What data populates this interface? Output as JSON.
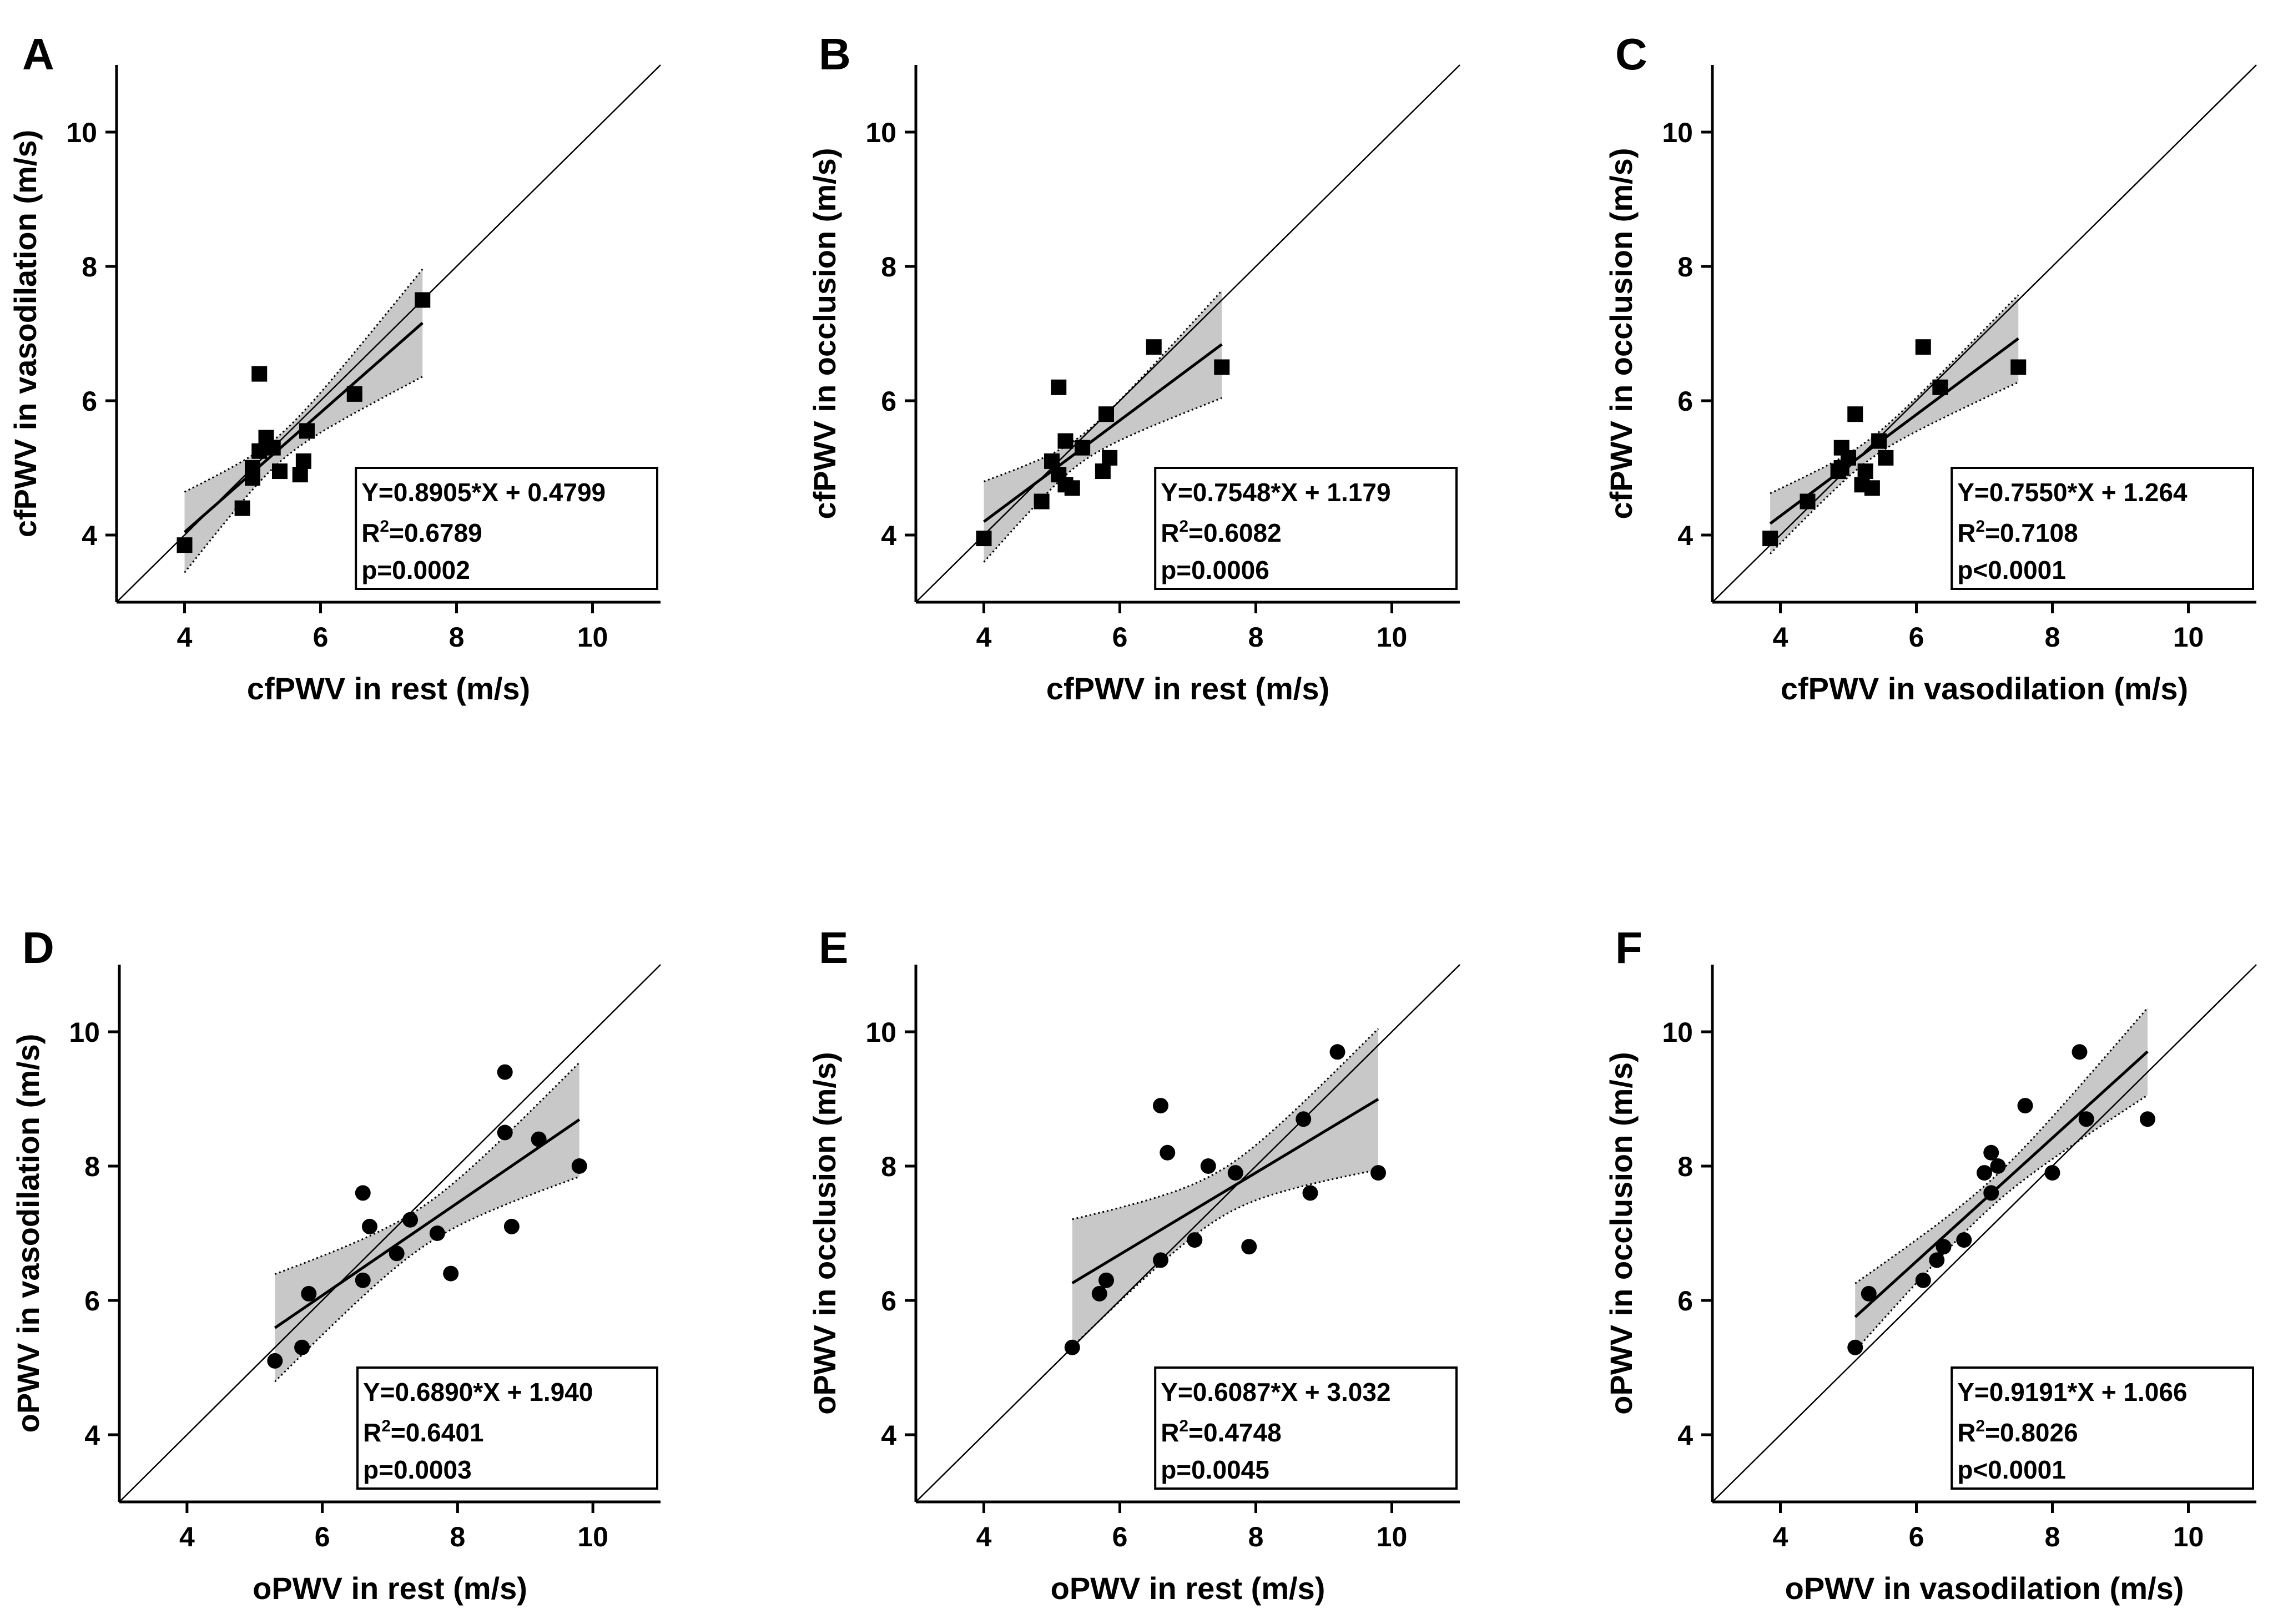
{
  "chart_data": [
    {
      "panel": "A",
      "type": "scatter",
      "marker": "square",
      "xlabel": "cfPWV in rest (m/s)",
      "ylabel": "cfPWV in vasodilation (m/s)",
      "xlim": [
        3,
        11
      ],
      "ylim": [
        3,
        11
      ],
      "xticks": [
        4,
        6,
        8,
        10
      ],
      "yticks": [
        4,
        6,
        8,
        10
      ],
      "points": [
        [
          4.0,
          3.85
        ],
        [
          4.85,
          4.4
        ],
        [
          5.0,
          4.85
        ],
        [
          5.0,
          5.0
        ],
        [
          5.1,
          5.25
        ],
        [
          5.1,
          6.4
        ],
        [
          5.2,
          5.45
        ],
        [
          5.3,
          5.3
        ],
        [
          5.4,
          4.95
        ],
        [
          5.7,
          4.9
        ],
        [
          5.75,
          5.1
        ],
        [
          5.8,
          5.55
        ],
        [
          6.5,
          6.1
        ],
        [
          7.5,
          7.5
        ]
      ],
      "fit": {
        "slope": 0.8905,
        "intercept": 0.4799,
        "x_range": [
          4.0,
          7.5
        ],
        "band_halfwidth_at_ends": [
          0.6,
          0.8
        ],
        "band_halfwidth_mid": 0.2,
        "x_mid": 5.4
      },
      "stats": {
        "equation": "Y=0.8905*X + 0.4799",
        "r2_prefix": "R",
        "r2_sup": "2",
        "r2_value": "=0.6789",
        "p": "p=0.0002"
      }
    },
    {
      "panel": "B",
      "type": "scatter",
      "marker": "square",
      "xlabel": "cfPWV in rest (m/s)",
      "ylabel": "cfPWV in occlusion (m/s)",
      "xlim": [
        3,
        11
      ],
      "ylim": [
        3,
        11
      ],
      "xticks": [
        4,
        6,
        8,
        10
      ],
      "yticks": [
        4,
        6,
        8,
        10
      ],
      "points": [
        [
          4.0,
          3.95
        ],
        [
          4.85,
          4.5
        ],
        [
          5.0,
          5.1
        ],
        [
          5.1,
          4.9
        ],
        [
          5.1,
          6.2
        ],
        [
          5.2,
          4.75
        ],
        [
          5.2,
          5.4
        ],
        [
          5.3,
          4.7
        ],
        [
          5.45,
          5.3
        ],
        [
          5.75,
          4.95
        ],
        [
          5.8,
          5.8
        ],
        [
          5.85,
          5.15
        ],
        [
          6.5,
          6.8
        ],
        [
          7.5,
          6.5
        ]
      ],
      "fit": {
        "slope": 0.7548,
        "intercept": 1.179,
        "x_range": [
          4.0,
          7.5
        ],
        "band_halfwidth_at_ends": [
          0.6,
          0.8
        ],
        "band_halfwidth_mid": 0.2,
        "x_mid": 5.4
      },
      "stats": {
        "equation": "Y=0.7548*X + 1.179",
        "r2_prefix": "R",
        "r2_sup": "2",
        "r2_value": "=0.6082",
        "p": "p=0.0006"
      }
    },
    {
      "panel": "C",
      "type": "scatter",
      "marker": "square",
      "xlabel": "cfPWV in vasodilation (m/s)",
      "ylabel": "cfPWV in occlusion (m/s)",
      "xlim": [
        3,
        11
      ],
      "ylim": [
        3,
        11
      ],
      "xticks": [
        4,
        6,
        8,
        10
      ],
      "yticks": [
        4,
        6,
        8,
        10
      ],
      "points": [
        [
          3.85,
          3.95
        ],
        [
          4.4,
          4.5
        ],
        [
          4.85,
          4.95
        ],
        [
          4.9,
          5.0
        ],
        [
          4.9,
          5.3
        ],
        [
          5.0,
          5.15
        ],
        [
          5.1,
          5.8
        ],
        [
          5.2,
          4.75
        ],
        [
          5.25,
          4.95
        ],
        [
          5.35,
          4.7
        ],
        [
          5.45,
          5.4
        ],
        [
          5.55,
          5.15
        ],
        [
          6.1,
          6.8
        ],
        [
          6.35,
          6.2
        ],
        [
          7.5,
          6.5
        ]
      ],
      "fit": {
        "slope": 0.755,
        "intercept": 1.264,
        "x_range": [
          3.85,
          7.5
        ],
        "band_halfwidth_at_ends": [
          0.45,
          0.65
        ],
        "band_halfwidth_mid": 0.15,
        "x_mid": 5.3
      },
      "stats": {
        "equation": "Y=0.7550*X + 1.264",
        "r2_prefix": "R",
        "r2_sup": "2",
        "r2_value": "=0.7108",
        "p": "p<0.0001"
      }
    },
    {
      "panel": "D",
      "type": "scatter",
      "marker": "circle",
      "xlabel": "oPWV in rest (m/s)",
      "ylabel": "oPWV in vasodilation (m/s)",
      "xlim": [
        3,
        11
      ],
      "ylim": [
        3,
        11
      ],
      "xticks": [
        4,
        6,
        8,
        10
      ],
      "yticks": [
        4,
        6,
        8,
        10
      ],
      "points": [
        [
          5.3,
          5.1
        ],
        [
          5.7,
          5.3
        ],
        [
          5.8,
          6.1
        ],
        [
          6.6,
          6.3
        ],
        [
          6.6,
          7.6
        ],
        [
          6.7,
          7.1
        ],
        [
          7.1,
          6.7
        ],
        [
          7.3,
          7.2
        ],
        [
          7.7,
          7.0
        ],
        [
          7.9,
          6.4
        ],
        [
          8.7,
          8.5
        ],
        [
          8.7,
          9.4
        ],
        [
          8.8,
          7.1
        ],
        [
          9.2,
          8.4
        ],
        [
          9.8,
          8.0
        ]
      ],
      "fit": {
        "slope": 0.689,
        "intercept": 1.94,
        "x_range": [
          5.3,
          9.8
        ],
        "band_halfwidth_at_ends": [
          0.8,
          0.85
        ],
        "band_halfwidth_mid": 0.3,
        "x_mid": 7.5
      },
      "stats": {
        "equation": "Y=0.6890*X + 1.940",
        "r2_prefix": "R",
        "r2_sup": "2",
        "r2_value": "=0.6401",
        "p": "p=0.0003"
      }
    },
    {
      "panel": "E",
      "type": "scatter",
      "marker": "circle",
      "xlabel": "oPWV in rest (m/s)",
      "ylabel": "oPWV in occlusion (m/s)",
      "xlim": [
        3,
        11
      ],
      "ylim": [
        3,
        11
      ],
      "xticks": [
        4,
        6,
        8,
        10
      ],
      "yticks": [
        4,
        6,
        8,
        10
      ],
      "points": [
        [
          5.3,
          5.3
        ],
        [
          5.7,
          6.1
        ],
        [
          5.8,
          6.3
        ],
        [
          6.6,
          6.6
        ],
        [
          6.6,
          8.9
        ],
        [
          6.7,
          8.2
        ],
        [
          7.1,
          6.9
        ],
        [
          7.3,
          8.0
        ],
        [
          7.7,
          7.9
        ],
        [
          7.9,
          6.8
        ],
        [
          8.7,
          8.7
        ],
        [
          8.8,
          7.6
        ],
        [
          9.2,
          9.7
        ],
        [
          9.8,
          7.9
        ]
      ],
      "fit": {
        "slope": 0.6087,
        "intercept": 3.032,
        "x_range": [
          5.3,
          9.8
        ],
        "band_halfwidth_at_ends": [
          0.95,
          1.05
        ],
        "band_halfwidth_mid": 0.35,
        "x_mid": 7.5
      },
      "stats": {
        "equation": "Y=0.6087*X + 3.032",
        "r2_prefix": "R",
        "r2_sup": "2",
        "r2_value": "=0.4748",
        "p": "p=0.0045"
      }
    },
    {
      "panel": "F",
      "type": "scatter",
      "marker": "circle",
      "xlabel": "oPWV in vasodilation (m/s)",
      "ylabel": "oPWV in occlusion (m/s)",
      "xlim": [
        3,
        11
      ],
      "ylim": [
        3,
        11
      ],
      "xticks": [
        4,
        6,
        8,
        10
      ],
      "yticks": [
        4,
        6,
        8,
        10
      ],
      "points": [
        [
          5.1,
          5.3
        ],
        [
          5.3,
          6.1
        ],
        [
          6.1,
          6.3
        ],
        [
          6.3,
          6.6
        ],
        [
          6.4,
          6.8
        ],
        [
          6.7,
          6.9
        ],
        [
          7.0,
          7.9
        ],
        [
          7.1,
          7.6
        ],
        [
          7.1,
          8.2
        ],
        [
          7.2,
          8.0
        ],
        [
          7.6,
          8.9
        ],
        [
          8.0,
          7.9
        ],
        [
          8.4,
          9.7
        ],
        [
          8.5,
          8.7
        ],
        [
          9.4,
          8.7
        ]
      ],
      "fit": {
        "slope": 0.9191,
        "intercept": 1.066,
        "x_range": [
          5.1,
          9.4
        ],
        "band_halfwidth_at_ends": [
          0.5,
          0.65
        ],
        "band_halfwidth_mid": 0.2,
        "x_mid": 7.1
      },
      "stats": {
        "equation": "Y=0.9191*X + 1.066",
        "r2_prefix": "R",
        "r2_sup": "2",
        "r2_value": "=0.8026",
        "p": "p<0.0001"
      }
    }
  ]
}
